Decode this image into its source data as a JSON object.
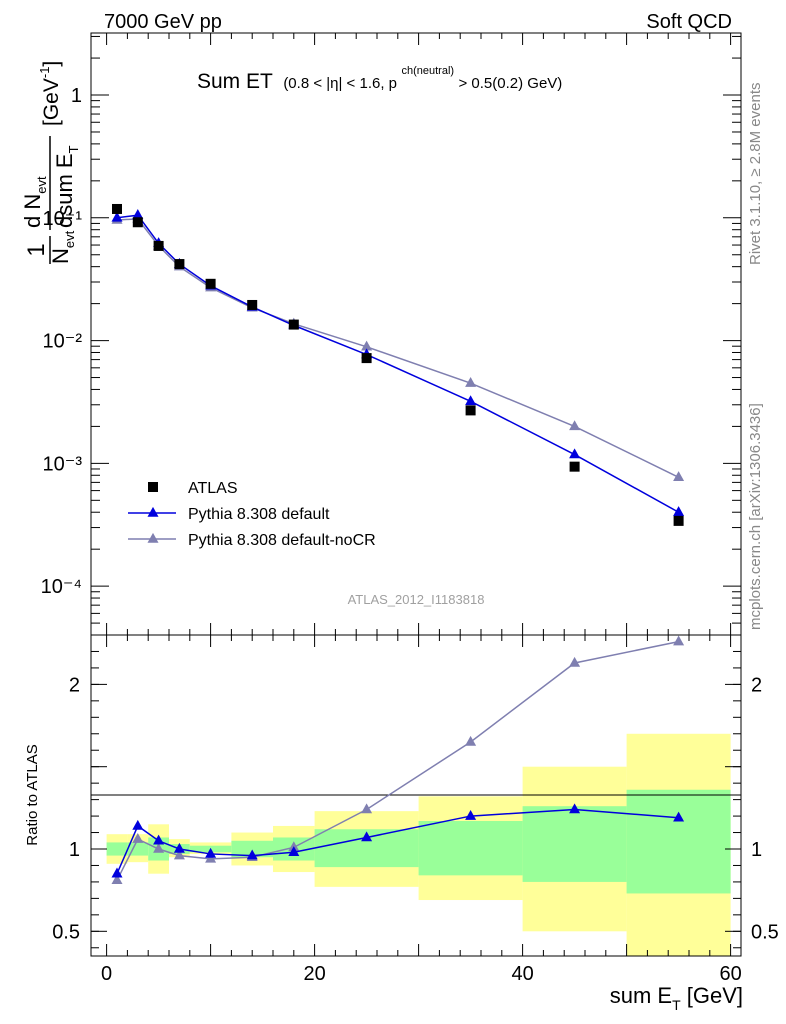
{
  "header": {
    "left": "7000 GeV pp",
    "right": "Soft QCD"
  },
  "side_texts": {
    "rivet": "Rivet 3.1.10, ≥ 2.8M events",
    "mcplots": "mcplots.cern.ch [arXiv:1306.3436]"
  },
  "chart_data": [
    {
      "type": "line",
      "title_main": "Sum ET",
      "title_cut_a": "(0.8 < |η| < 1.6, p",
      "title_cut_sup": "ch(neutral)",
      "title_cut_b": " > 0.5(0.2) GeV)",
      "ylabel": "(1/N_evt) dN_evt/dsum E_T [GeV^-1]",
      "ylabel_parts": {
        "one": "1",
        "n_evt": "N",
        "n_sub": "evt",
        "d_n": "d N",
        "d_n_sub": "evt",
        "dsum": "dsum E",
        "dsum_sub": "T",
        "unit": "[GeV",
        "unit_sup": "-1",
        "unit_close": "]"
      },
      "yscale": "log",
      "ylim": [
        4e-05,
        3.2
      ],
      "xlim": [
        -1.5,
        61
      ],
      "y_tick_labels": [
        "1",
        "10⁻¹",
        "10⁻²",
        "10⁻³",
        "10⁻⁴"
      ],
      "watermark": "ATLAS_2012_I1183818",
      "legend_position": "bottom-left",
      "x": [
        1,
        3,
        5,
        7,
        10,
        14,
        18,
        25,
        35,
        45,
        55
      ],
      "series": [
        {
          "name": "ATLAS",
          "marker": "square",
          "color": "#000000",
          "values": [
            0.118,
            0.092,
            0.059,
            0.042,
            0.029,
            0.0195,
            0.0135,
            0.0072,
            0.0027,
            0.00094,
            0.00034
          ]
        },
        {
          "name": "Pythia 8.308 default",
          "marker": "triangle",
          "color": "#0000dd",
          "values": [
            0.1,
            0.105,
            0.062,
            0.042,
            0.028,
            0.0188,
            0.0133,
            0.0077,
            0.0032,
            0.00118,
            0.0004
          ]
        },
        {
          "name": "Pythia 8.308 default-noCR",
          "marker": "triangle",
          "color": "#7f7fb0",
          "values": [
            0.096,
            0.098,
            0.059,
            0.04,
            0.027,
            0.0185,
            0.0137,
            0.0089,
            0.0045,
            0.002,
            0.00077
          ]
        }
      ]
    },
    {
      "type": "line",
      "ylabel": "Ratio to ATLAS",
      "xlabel_main": "sum E",
      "xlabel_sub": "T",
      "xlabel_unit": " [GeV]",
      "ylim": [
        0.35,
        2.3
      ],
      "xlim": [
        -1.5,
        61
      ],
      "x_tick_labels": [
        "0",
        "20",
        "40",
        "60"
      ],
      "y_tick_labels": [
        "2",
        "1",
        "0.5"
      ],
      "bands": {
        "edges": [
          0,
          2,
          4,
          6,
          8,
          12,
          16,
          20,
          30,
          40,
          50,
          60
        ],
        "yellow_lo": [
          0.91,
          0.92,
          0.85,
          0.95,
          0.97,
          0.9,
          0.86,
          0.77,
          0.69,
          0.5,
          0.25
        ],
        "yellow_hi": [
          1.09,
          1.09,
          1.15,
          1.06,
          1.04,
          1.1,
          1.14,
          1.23,
          1.32,
          1.5,
          1.7
        ],
        "green_lo": [
          0.96,
          0.96,
          0.93,
          0.97,
          0.98,
          0.95,
          0.93,
          0.89,
          0.84,
          0.8,
          0.73
        ],
        "green_hi": [
          1.04,
          1.04,
          1.07,
          1.03,
          1.02,
          1.05,
          1.07,
          1.12,
          1.17,
          1.26,
          1.36
        ]
      },
      "x": [
        1,
        3,
        5,
        7,
        10,
        14,
        18,
        25,
        35,
        45,
        55
      ],
      "series": [
        {
          "name": "Pythia 8.308 default",
          "color": "#0000dd",
          "values": [
            0.85,
            1.14,
            1.05,
            1.0,
            0.97,
            0.96,
            0.98,
            1.07,
            1.2,
            1.24,
            1.19
          ]
        },
        {
          "name": "Pythia 8.308 default-noCR",
          "color": "#7f7fb0",
          "values": [
            0.81,
            1.06,
            1.0,
            0.96,
            0.94,
            0.95,
            1.01,
            1.24,
            1.65,
            2.13,
            2.26
          ]
        }
      ]
    }
  ]
}
